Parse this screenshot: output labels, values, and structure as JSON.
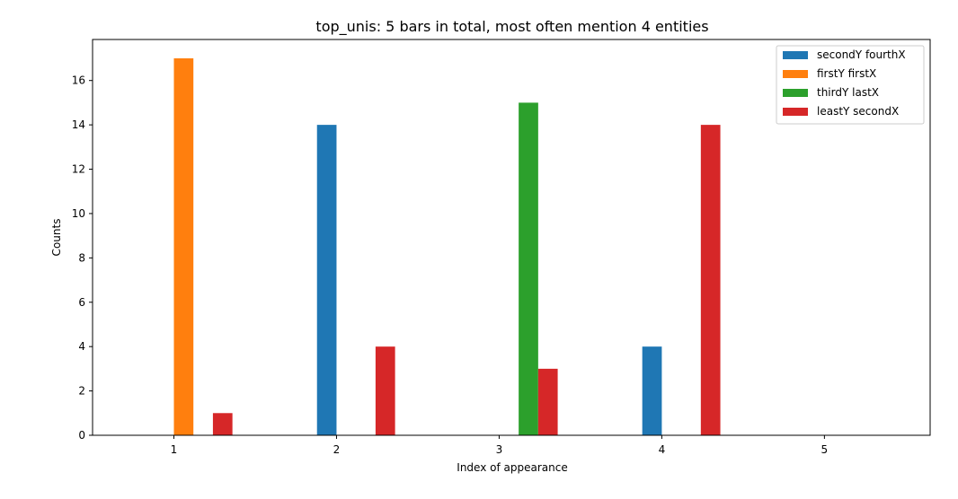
{
  "chart_data": {
    "type": "bar",
    "title": "top_unis: 5 bars in total, most often mention  4 entities",
    "xlabel": "Index of appearance",
    "ylabel": "Counts",
    "categories": [
      "1",
      "2",
      "3",
      "4",
      "5"
    ],
    "xlim": [
      0.5,
      5.65
    ],
    "ylim": [
      0,
      17.85
    ],
    "yticks": [
      0,
      2,
      4,
      6,
      8,
      10,
      12,
      14,
      16
    ],
    "grid": false,
    "legend_position": "top-right",
    "series": [
      {
        "name": "secondY fourthX",
        "color": "#1f77b4",
        "points": [
          {
            "x": 2,
            "y": 14
          },
          {
            "x": 4,
            "y": 4
          }
        ]
      },
      {
        "name": "firstY firstX",
        "color": "#ff7f0e",
        "points": [
          {
            "x": 1,
            "y": 17
          }
        ]
      },
      {
        "name": "thirdY lastX",
        "color": "#2ca02c",
        "points": [
          {
            "x": 3,
            "y": 15
          }
        ]
      },
      {
        "name": "leastY secondX",
        "color": "#d62728",
        "points": [
          {
            "x": 1,
            "y": 1
          },
          {
            "x": 2,
            "y": 4
          },
          {
            "x": 3,
            "y": 3
          },
          {
            "x": 4,
            "y": 14
          }
        ]
      }
    ]
  }
}
